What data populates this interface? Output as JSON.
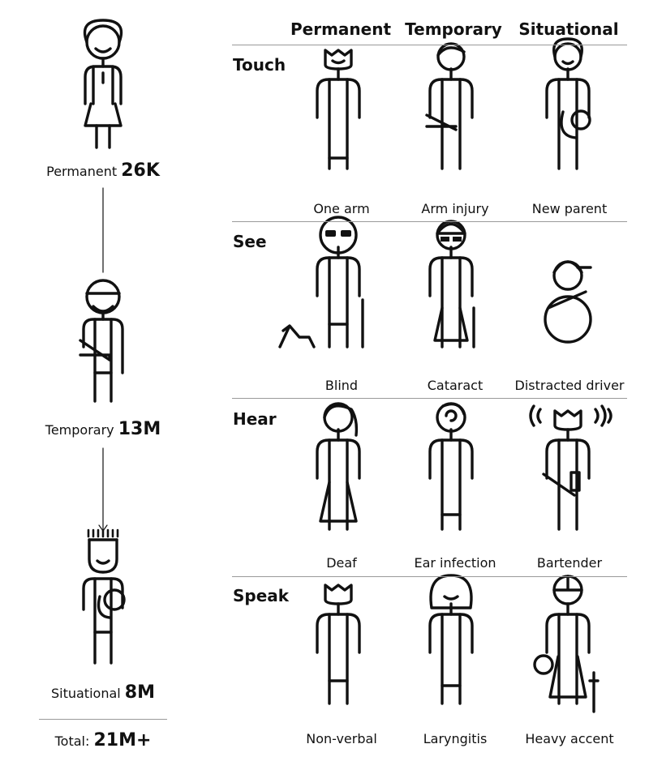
{
  "columns": [
    "Permanent",
    "Temporary",
    "Situational"
  ],
  "rows": [
    {
      "label": "Touch",
      "people": [
        "One arm",
        "Arm injury",
        "New parent"
      ]
    },
    {
      "label": "See",
      "people": [
        "Blind",
        "Cataract",
        "Distracted driver"
      ]
    },
    {
      "label": "Hear",
      "people": [
        "Deaf",
        "Ear infection",
        "Bartender"
      ]
    },
    {
      "label": "Speak",
      "people": [
        "Non-verbal",
        "Laryngitis",
        "Heavy accent"
      ]
    }
  ],
  "spectrum": [
    {
      "label": "Permanent",
      "value": "26K"
    },
    {
      "label": "Temporary",
      "value": "13M"
    },
    {
      "label": "Situational",
      "value": "8M"
    }
  ],
  "total": {
    "label": "Total:",
    "value": "21M+"
  },
  "colors": {
    "line": "#111111",
    "rule": "#9a9a9a"
  }
}
